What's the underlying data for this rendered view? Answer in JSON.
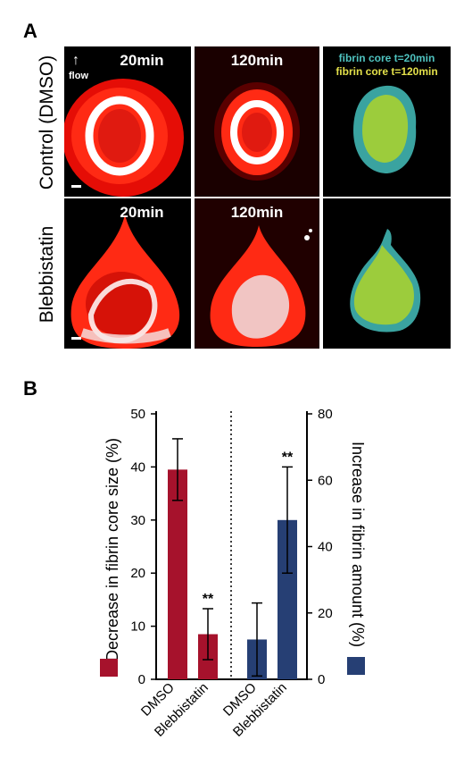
{
  "panel_a": {
    "letter": "A",
    "rows": [
      {
        "label": "Control (DMSO)",
        "times": [
          "20min",
          "120min"
        ]
      },
      {
        "label": "Blebbistatin",
        "times": [
          "20min",
          "120min"
        ]
      }
    ],
    "flow_label": "flow",
    "overlay_legend": [
      "fibrin core t=20min",
      "fibrin core t=120min"
    ],
    "colors": {
      "core_20": "#3aa3a0",
      "core_120": "#9ccc3c",
      "thrombus": "#ff1a0a"
    }
  },
  "panel_b": {
    "letter": "B",
    "y_left_label": "Decrease in fibrin core size (%)",
    "y_right_label": "Increase in fibrin amount (%)",
    "significance": "**"
  },
  "chart_data": {
    "type": "bar",
    "panels": [
      {
        "axis": "left",
        "ylabel": "Decrease in fibrin core size (%)",
        "ylim": [
          0,
          50
        ],
        "yticks": [
          0,
          10,
          20,
          30,
          40,
          50
        ],
        "categories": [
          "DMSO",
          "Blebbistatin"
        ],
        "values": [
          39.5,
          8.5
        ],
        "errors": [
          5.8,
          4.8
        ],
        "color": "#a6122c",
        "annotations": [
          {
            "category": "Blebbistatin",
            "text": "**"
          }
        ]
      },
      {
        "axis": "right",
        "ylabel": "Increase in fibrin amount (%)",
        "ylim": [
          0,
          80
        ],
        "yticks": [
          0,
          20,
          40,
          60,
          80
        ],
        "categories": [
          "DMSO",
          "Blebbistatin"
        ],
        "values": [
          12,
          48
        ],
        "errors": [
          11,
          16
        ],
        "color": "#263f74",
        "annotations": [
          {
            "category": "Blebbistatin",
            "text": "**"
          }
        ]
      }
    ],
    "divider": "dotted"
  }
}
